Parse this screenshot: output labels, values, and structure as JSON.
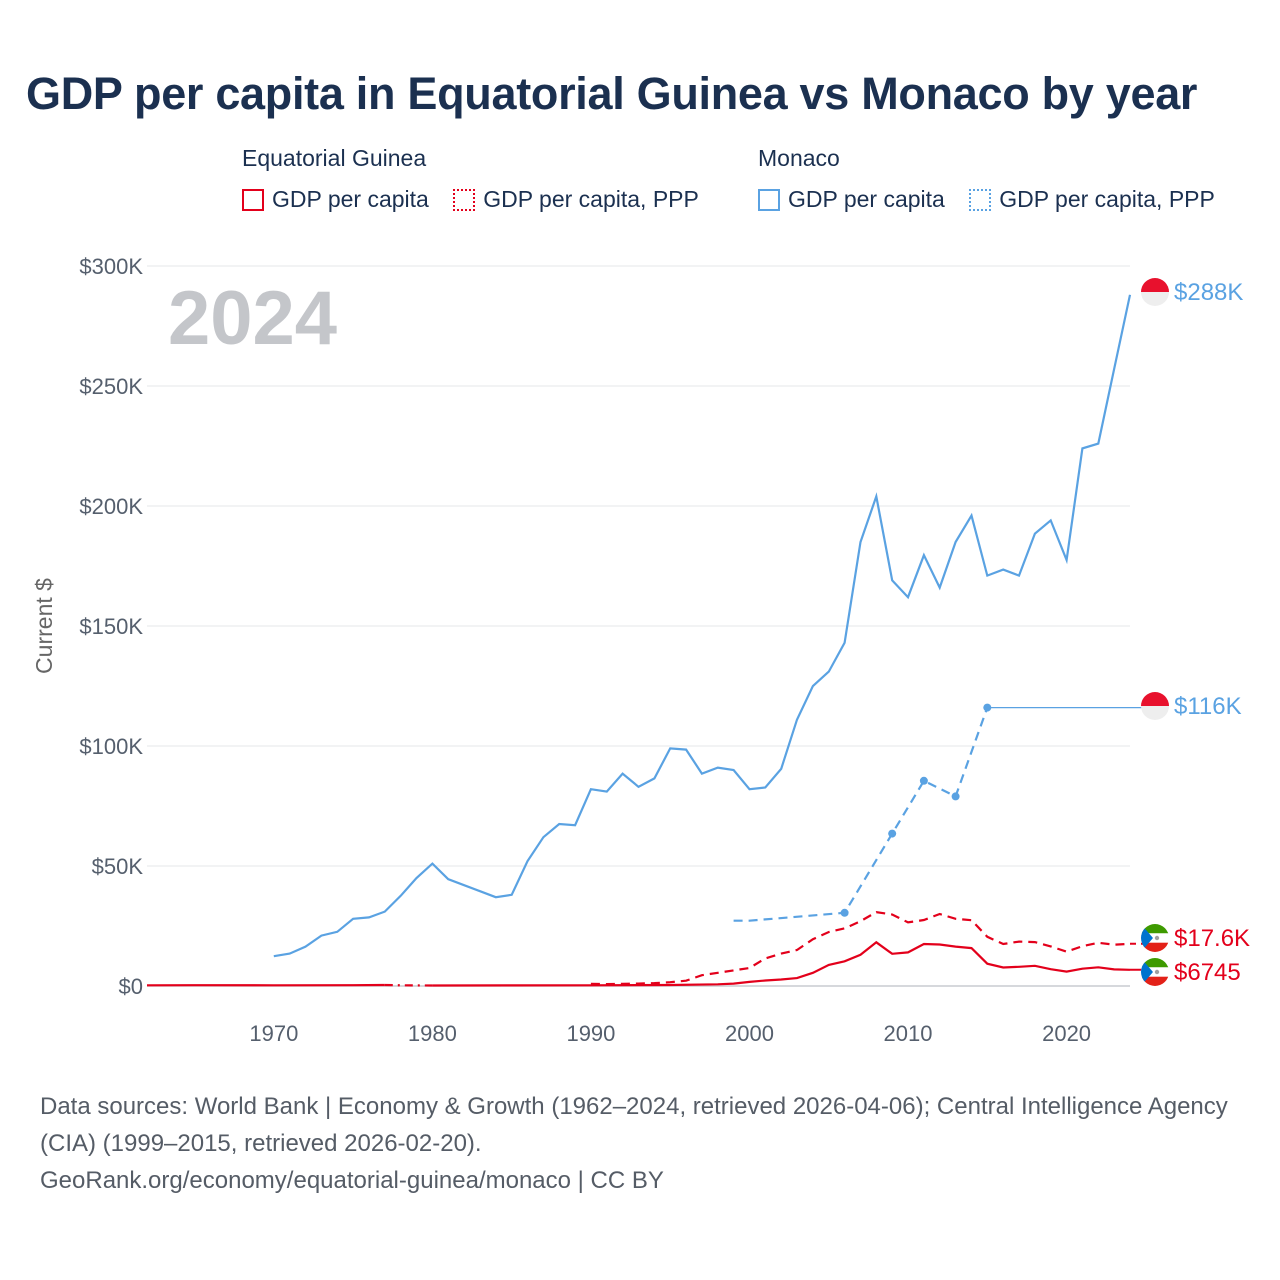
{
  "title": "GDP per capita in Equatorial Guinea vs Monaco by year",
  "legend": {
    "groups": [
      {
        "name": "Equatorial Guinea",
        "color": "#e3001b",
        "items": [
          {
            "label": "GDP per capita",
            "style": "solid"
          },
          {
            "label": "GDP per capita, PPP",
            "style": "dotted"
          }
        ]
      },
      {
        "name": "Monaco",
        "color": "#5aa2e2",
        "items": [
          {
            "label": "GDP per capita",
            "style": "solid"
          },
          {
            "label": "GDP per capita, PPP",
            "style": "dotted"
          }
        ]
      }
    ]
  },
  "year_label": "2024",
  "sources": {
    "line1": "Data sources: World Bank | Economy & Growth (1962–2024, retrieved 2026-04-06); Central Intelligence Agency (CIA) (1999–2015, retrieved 2026-02-20).",
    "line2": "GeoRank.org/economy/equatorial-guinea/monaco | CC BY"
  },
  "chart_data": {
    "type": "line",
    "title": "GDP per capita in Equatorial Guinea vs Monaco by year",
    "xlabel": "",
    "ylabel": "Current $",
    "xlim": [
      1962,
      2024
    ],
    "ylim": [
      0,
      300000
    ],
    "x_ticks": [
      1970,
      1980,
      1990,
      2000,
      2010,
      2020
    ],
    "x_tick_labels": [
      "1970",
      "1980",
      "1990",
      "2000",
      "2010",
      "2020"
    ],
    "y_ticks": [
      0,
      50000,
      100000,
      150000,
      200000,
      250000,
      300000
    ],
    "y_tick_labels": [
      "$0",
      "$50K",
      "$100K",
      "$150K",
      "$200K",
      "$250K",
      "$300K"
    ],
    "grid": true,
    "series": [
      {
        "name": "Monaco GDP per capita",
        "country": "Monaco",
        "color": "#5aa2e2",
        "style": "solid",
        "end_label": "$288K",
        "end_value": 288000,
        "points": [
          [
            1970,
            12400
          ],
          [
            1971,
            13500
          ],
          [
            1972,
            16400
          ],
          [
            1973,
            21000
          ],
          [
            1974,
            22600
          ],
          [
            1975,
            28000
          ],
          [
            1976,
            28600
          ],
          [
            1977,
            31000
          ],
          [
            1978,
            37600
          ],
          [
            1979,
            45000
          ],
          [
            1980,
            51000
          ],
          [
            1981,
            44500
          ],
          [
            1982,
            42000
          ],
          [
            1983,
            39500
          ],
          [
            1984,
            37000
          ],
          [
            1985,
            38000
          ],
          [
            1986,
            52000
          ],
          [
            1987,
            62000
          ],
          [
            1988,
            67500
          ],
          [
            1989,
            67000
          ],
          [
            1990,
            82000
          ],
          [
            1991,
            81000
          ],
          [
            1992,
            88500
          ],
          [
            1993,
            83000
          ],
          [
            1994,
            86500
          ],
          [
            1995,
            99000
          ],
          [
            1996,
            98500
          ],
          [
            1997,
            88500
          ],
          [
            1998,
            91000
          ],
          [
            1999,
            90000
          ],
          [
            2000,
            82000
          ],
          [
            2001,
            82700
          ],
          [
            2002,
            90500
          ],
          [
            2003,
            111000
          ],
          [
            2004,
            125000
          ],
          [
            2005,
            131000
          ],
          [
            2006,
            143000
          ],
          [
            2007,
            185000
          ],
          [
            2008,
            204000
          ],
          [
            2009,
            169000
          ],
          [
            2010,
            162000
          ],
          [
            2011,
            179500
          ],
          [
            2012,
            166000
          ],
          [
            2013,
            185000
          ],
          [
            2014,
            196000
          ],
          [
            2015,
            171000
          ],
          [
            2016,
            173500
          ],
          [
            2017,
            171000
          ],
          [
            2018,
            188500
          ],
          [
            2019,
            194000
          ],
          [
            2020,
            177500
          ],
          [
            2021,
            224000
          ],
          [
            2022,
            226000
          ],
          [
            2023,
            257000
          ],
          [
            2024,
            288000
          ]
        ]
      },
      {
        "name": "Monaco GDP per capita, PPP",
        "country": "Monaco",
        "color": "#5aa2e2",
        "style": "dashed",
        "end_label": "$116K",
        "end_value": 116000,
        "points": [
          [
            1999,
            27200
          ],
          [
            2000,
            27200
          ],
          [
            2006,
            30500
          ],
          [
            2009,
            63500
          ],
          [
            2011,
            85500
          ],
          [
            2013,
            79000
          ],
          [
            2015,
            116000
          ]
        ]
      },
      {
        "name": "Equatorial Guinea GDP per capita, PPP",
        "country": "Equatorial Guinea",
        "color": "#e3001b",
        "style": "dashed",
        "end_label": "$17.6K",
        "end_value": 17600,
        "points": [
          [
            1990,
            900
          ],
          [
            1991,
            800
          ],
          [
            1992,
            900
          ],
          [
            1993,
            1000
          ],
          [
            1994,
            1200
          ],
          [
            1995,
            1600
          ],
          [
            1996,
            2200
          ],
          [
            1997,
            4500
          ],
          [
            1998,
            5500
          ],
          [
            1999,
            6500
          ],
          [
            2000,
            7500
          ],
          [
            2001,
            11500
          ],
          [
            2002,
            13500
          ],
          [
            2003,
            15000
          ],
          [
            2004,
            19500
          ],
          [
            2005,
            22500
          ],
          [
            2006,
            24000
          ],
          [
            2007,
            27000
          ],
          [
            2008,
            30800
          ],
          [
            2009,
            29800
          ],
          [
            2010,
            26500
          ],
          [
            2011,
            27500
          ],
          [
            2012,
            30000
          ],
          [
            2013,
            28000
          ],
          [
            2014,
            27400
          ],
          [
            2015,
            20500
          ],
          [
            2016,
            17500
          ],
          [
            2017,
            18500
          ],
          [
            2018,
            18300
          ],
          [
            2019,
            16500
          ],
          [
            2020,
            14300
          ],
          [
            2021,
            16600
          ],
          [
            2022,
            18000
          ],
          [
            2023,
            17200
          ],
          [
            2024,
            17600
          ]
        ]
      },
      {
        "name": "Equatorial Guinea GDP per capita",
        "country": "Equatorial Guinea",
        "color": "#e3001b",
        "style": "solid",
        "end_label": "$6745",
        "end_value": 6745,
        "points": [
          [
            1962,
            300
          ],
          [
            1965,
            320
          ],
          [
            1970,
            280
          ],
          [
            1975,
            350
          ],
          [
            1977,
            400
          ],
          [
            1978,
            300
          ],
          [
            1980,
            220
          ],
          [
            1985,
            250
          ],
          [
            1990,
            300
          ],
          [
            1995,
            400
          ],
          [
            1998,
            700
          ],
          [
            1999,
            1000
          ],
          [
            2000,
            1700
          ],
          [
            2001,
            2300
          ],
          [
            2002,
            2700
          ],
          [
            2003,
            3300
          ],
          [
            2004,
            5500
          ],
          [
            2005,
            8800
          ],
          [
            2006,
            10300
          ],
          [
            2007,
            13000
          ],
          [
            2008,
            18200
          ],
          [
            2009,
            13400
          ],
          [
            2010,
            14000
          ],
          [
            2011,
            17500
          ],
          [
            2012,
            17300
          ],
          [
            2013,
            16400
          ],
          [
            2014,
            15800
          ],
          [
            2015,
            9300
          ],
          [
            2016,
            7700
          ],
          [
            2017,
            8000
          ],
          [
            2018,
            8400
          ],
          [
            2019,
            7000
          ],
          [
            2020,
            6000
          ],
          [
            2021,
            7200
          ],
          [
            2022,
            7800
          ],
          [
            2023,
            6900
          ],
          [
            2024,
            6745
          ]
        ]
      }
    ],
    "gap_segments": [
      {
        "series": "Equatorial Guinea GDP per capita",
        "from": 1977,
        "to": 1980
      }
    ]
  }
}
